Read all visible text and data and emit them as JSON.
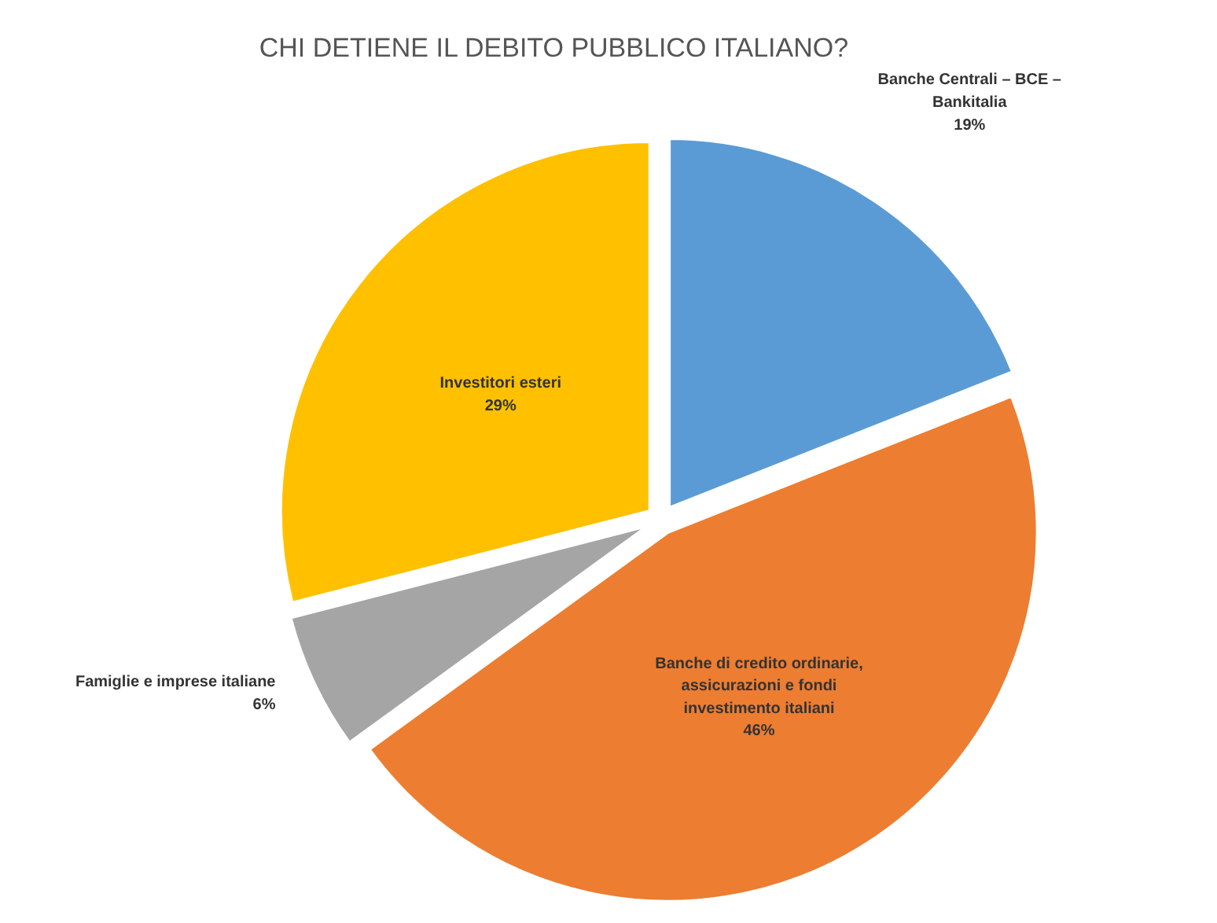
{
  "chart_data": {
    "type": "pie",
    "title": "CHI DETIENE IL DEBITO PUBBLICO ITALIANO?",
    "categories": [
      "Banche Centrali – BCE – Bankitalia",
      "Banche di credito ordinarie, assicurazioni e fondi investimento italiani",
      "Famiglie e imprese italiane",
      "Investitori esteri"
    ],
    "values": [
      19,
      46,
      6,
      29
    ],
    "value_labels": [
      "19%",
      "46%",
      "6%",
      "29%"
    ],
    "colors": [
      "#5b9bd5",
      "#ed7d31",
      "#a5a5a5",
      "#ffc000"
    ]
  }
}
